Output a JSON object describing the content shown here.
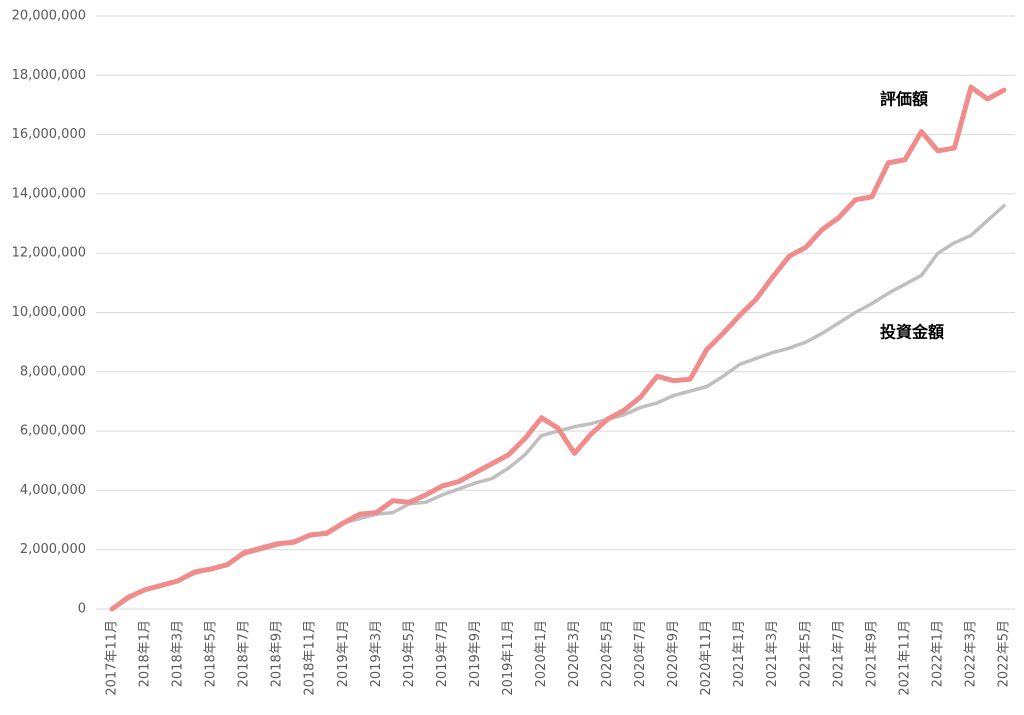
{
  "chart_data": {
    "type": "line",
    "categories": [
      "2017年11月",
      null,
      "2018年1月",
      null,
      "2018年3月",
      null,
      "2018年5月",
      null,
      "2018年7月",
      null,
      "2018年9月",
      null,
      "2018年11月",
      null,
      "2019年1月",
      null,
      "2019年3月",
      null,
      "2019年5月",
      null,
      "2019年7月",
      null,
      "2019年9月",
      null,
      "2019年11月",
      null,
      "2020年1月",
      null,
      "2020年3月",
      null,
      "2020年5月",
      null,
      "2020年7月",
      null,
      "2020年9月",
      null,
      "2020年11月",
      null,
      "2021年1月",
      null,
      "2021年3月",
      null,
      "2021年5月",
      null,
      "2021年7月",
      null,
      "2021年9月",
      null,
      "2021年11月",
      null,
      "2022年1月",
      null,
      "2022年3月",
      null,
      "2022年5月"
    ],
    "series": [
      {
        "name": "評価額",
        "color": "#f08c8c",
        "values": [
          0,
          400000,
          650000,
          800000,
          950000,
          1250000,
          1350000,
          1500000,
          1900000,
          2050000,
          2200000,
          2250000,
          2500000,
          2550000,
          2900000,
          3200000,
          3250000,
          3650000,
          3600000,
          3850000,
          4150000,
          4300000,
          4600000,
          4900000,
          5200000,
          5750000,
          6450000,
          6100000,
          5250000,
          5900000,
          6400000,
          6700000,
          7150000,
          7850000,
          7700000,
          7750000,
          8750000,
          9300000,
          9900000,
          10450000,
          11200000,
          11900000,
          12200000,
          12800000,
          13200000,
          13800000,
          13900000,
          15050000,
          15150000,
          16100000,
          15450000,
          15550000,
          17600000,
          17200000,
          17500000
        ]
      },
      {
        "name": "投資金額",
        "color": "#bfbfbf",
        "values": [
          0,
          350000,
          650000,
          800000,
          950000,
          1200000,
          1350000,
          1500000,
          1850000,
          2000000,
          2150000,
          2300000,
          2450000,
          2600000,
          2900000,
          3050000,
          3200000,
          3250000,
          3550000,
          3600000,
          3850000,
          4050000,
          4250000,
          4400000,
          4750000,
          5200000,
          5850000,
          6000000,
          6150000,
          6250000,
          6400000,
          6550000,
          6800000,
          6950000,
          7200000,
          7350000,
          7500000,
          7850000,
          8250000,
          8450000,
          8650000,
          8800000,
          9000000,
          9300000,
          9650000,
          10000000,
          10300000,
          10650000,
          10950000,
          11250000,
          12000000,
          12350000,
          12600000,
          13100000,
          13600000
        ]
      }
    ],
    "ylim": [
      0,
      20000000
    ],
    "yticks": [
      0,
      {
        "value": 2000000,
        "label": "2,000,000"
      },
      {
        "value": 4000000,
        "label": "4,000,000"
      },
      {
        "value": 6000000,
        "label": "6,000,000"
      },
      {
        "value": 8000000,
        "label": "8,000,000"
      },
      {
        "value": 10000000,
        "label": "10,000,000"
      },
      {
        "value": 12000000,
        "label": "12,000,000"
      },
      {
        "value": 14000000,
        "label": "14,000,000"
      },
      {
        "value": 16000000,
        "label": "16,000,000"
      },
      {
        "value": 18000000,
        "label": "18,000,000"
      },
      {
        "value": 20000000,
        "label": "20,000,000"
      }
    ],
    "grid": true
  }
}
